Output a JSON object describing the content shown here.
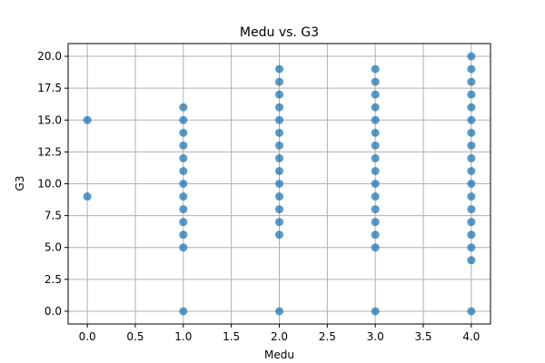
{
  "chart_data": {
    "type": "scatter",
    "title": "Medu vs. G3",
    "xlabel": "Medu",
    "ylabel": "G3",
    "xlim": [
      -0.2,
      4.2
    ],
    "ylim": [
      -1.0,
      21.0
    ],
    "xticks": [
      0.0,
      0.5,
      1.0,
      1.5,
      2.0,
      2.5,
      3.0,
      3.5,
      4.0
    ],
    "xtick_labels": [
      "0.0",
      "0.5",
      "1.0",
      "1.5",
      "2.0",
      "2.5",
      "3.0",
      "3.5",
      "4.0"
    ],
    "yticks": [
      0.0,
      2.5,
      5.0,
      7.5,
      10.0,
      12.5,
      15.0,
      17.5,
      20.0
    ],
    "ytick_labels": [
      "0.0",
      "2.5",
      "5.0",
      "7.5",
      "10.0",
      "12.5",
      "15.0",
      "17.5",
      "20.0"
    ],
    "grid": true,
    "marker_color": "#1f77b4",
    "points": [
      {
        "x": 0,
        "y": 15
      },
      {
        "x": 0,
        "y": 9
      },
      {
        "x": 1,
        "y": 16
      },
      {
        "x": 1,
        "y": 15
      },
      {
        "x": 1,
        "y": 14
      },
      {
        "x": 1,
        "y": 13
      },
      {
        "x": 1,
        "y": 12
      },
      {
        "x": 1,
        "y": 11
      },
      {
        "x": 1,
        "y": 10
      },
      {
        "x": 1,
        "y": 9
      },
      {
        "x": 1,
        "y": 8
      },
      {
        "x": 1,
        "y": 7
      },
      {
        "x": 1,
        "y": 6
      },
      {
        "x": 1,
        "y": 5
      },
      {
        "x": 1,
        "y": 0
      },
      {
        "x": 2,
        "y": 19
      },
      {
        "x": 2,
        "y": 18
      },
      {
        "x": 2,
        "y": 17
      },
      {
        "x": 2,
        "y": 16
      },
      {
        "x": 2,
        "y": 15
      },
      {
        "x": 2,
        "y": 14
      },
      {
        "x": 2,
        "y": 13
      },
      {
        "x": 2,
        "y": 12
      },
      {
        "x": 2,
        "y": 11
      },
      {
        "x": 2,
        "y": 10
      },
      {
        "x": 2,
        "y": 9
      },
      {
        "x": 2,
        "y": 8
      },
      {
        "x": 2,
        "y": 7
      },
      {
        "x": 2,
        "y": 6
      },
      {
        "x": 2,
        "y": 0
      },
      {
        "x": 3,
        "y": 19
      },
      {
        "x": 3,
        "y": 18
      },
      {
        "x": 3,
        "y": 17
      },
      {
        "x": 3,
        "y": 16
      },
      {
        "x": 3,
        "y": 15
      },
      {
        "x": 3,
        "y": 14
      },
      {
        "x": 3,
        "y": 13
      },
      {
        "x": 3,
        "y": 12
      },
      {
        "x": 3,
        "y": 11
      },
      {
        "x": 3,
        "y": 10
      },
      {
        "x": 3,
        "y": 9
      },
      {
        "x": 3,
        "y": 8
      },
      {
        "x": 3,
        "y": 7
      },
      {
        "x": 3,
        "y": 6
      },
      {
        "x": 3,
        "y": 5
      },
      {
        "x": 3,
        "y": 0
      },
      {
        "x": 4,
        "y": 20
      },
      {
        "x": 4,
        "y": 19
      },
      {
        "x": 4,
        "y": 18
      },
      {
        "x": 4,
        "y": 17
      },
      {
        "x": 4,
        "y": 16
      },
      {
        "x": 4,
        "y": 15
      },
      {
        "x": 4,
        "y": 14
      },
      {
        "x": 4,
        "y": 13
      },
      {
        "x": 4,
        "y": 12
      },
      {
        "x": 4,
        "y": 11
      },
      {
        "x": 4,
        "y": 10
      },
      {
        "x": 4,
        "y": 9
      },
      {
        "x": 4,
        "y": 8
      },
      {
        "x": 4,
        "y": 7
      },
      {
        "x": 4,
        "y": 6
      },
      {
        "x": 4,
        "y": 5
      },
      {
        "x": 4,
        "y": 4
      },
      {
        "x": 4,
        "y": 0
      }
    ]
  }
}
